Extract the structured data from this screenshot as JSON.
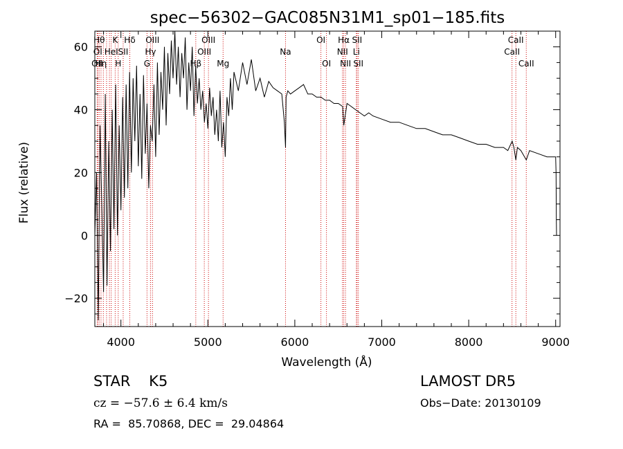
{
  "chart_data": {
    "type": "line",
    "title": "spec−56302−GAC085N31M1_sp01−185.fits",
    "xlabel": "Wavelength (Å)",
    "ylabel": "Flux (relative)",
    "xlim": [
      3700,
      9050
    ],
    "ylim": [
      -29,
      65
    ],
    "x_ticks": [
      4000,
      5000,
      6000,
      7000,
      8000,
      9000
    ],
    "y_ticks": [
      -20,
      0,
      20,
      40,
      60
    ],
    "x_tick_labels": [
      "4000",
      "5000",
      "6000",
      "7000",
      "8000",
      "9000"
    ],
    "y_tick_labels": [
      "−20",
      "0",
      "20",
      "40",
      "60"
    ],
    "grid": false,
    "line_color": "#000000",
    "marker_color": "#cc0000",
    "series": [
      {
        "x": [
          3700,
          3720,
          3740,
          3760,
          3780,
          3800,
          3820,
          3840,
          3860,
          3880,
          3900,
          3920,
          3940,
          3960,
          3980,
          4000,
          4020,
          4040,
          4060,
          4080,
          4100,
          4120,
          4140,
          4160,
          4180,
          4200,
          4220,
          4240,
          4260,
          4280,
          4300,
          4320,
          4340,
          4360,
          4380,
          4400,
          4420,
          4440,
          4460,
          4480,
          4500,
          4520,
          4540,
          4560,
          4580,
          4600,
          4620,
          4640,
          4660,
          4680,
          4700,
          4720,
          4740,
          4760,
          4780,
          4800,
          4820,
          4840,
          4860,
          4880,
          4900,
          4920,
          4940,
          4960,
          4980,
          5000,
          5020,
          5040,
          5060,
          5080,
          5100,
          5120,
          5140,
          5160,
          5180,
          5200,
          5220,
          5240,
          5260,
          5280,
          5300,
          5350,
          5400,
          5450,
          5500,
          5550,
          5600,
          5650,
          5700,
          5750,
          5800,
          5850,
          5880,
          5893,
          5900,
          5920,
          5950,
          6000,
          6050,
          6100,
          6150,
          6200,
          6250,
          6300,
          6350,
          6400,
          6450,
          6500,
          6550,
          6563,
          6600,
          6650,
          6700,
          6750,
          6800,
          6850,
          6900,
          7000,
          7100,
          7200,
          7300,
          7400,
          7500,
          7600,
          7700,
          7800,
          7900,
          8000,
          8100,
          8200,
          8300,
          8400,
          8450,
          8500,
          8520,
          8542,
          8560,
          8600,
          8662,
          8700,
          8800,
          8900,
          9000,
          9005,
          9008,
          9010
        ],
        "y": [
          0,
          20,
          -27,
          35,
          10,
          -18,
          45,
          -16,
          30,
          -5,
          40,
          2,
          48,
          0,
          35,
          8,
          44,
          12,
          48,
          15,
          52,
          20,
          50,
          30,
          54,
          22,
          45,
          18,
          51,
          26,
          42,
          15,
          35,
          30,
          48,
          25,
          55,
          32,
          52,
          40,
          60,
          35,
          58,
          45,
          62,
          50,
          65,
          48,
          60,
          44,
          58,
          50,
          63,
          40,
          55,
          46,
          60,
          38,
          54,
          42,
          50,
          40,
          46,
          36,
          42,
          34,
          47,
          38,
          44,
          32,
          40,
          30,
          46,
          28,
          36,
          25,
          44,
          38,
          50,
          40,
          52,
          46,
          55,
          48,
          56,
          46,
          50,
          44,
          49,
          47,
          46,
          45,
          36,
          28,
          44,
          46,
          45,
          46,
          47,
          48,
          45,
          45,
          44,
          44,
          43,
          43,
          42,
          42,
          41,
          35,
          42,
          41,
          40,
          39,
          38,
          39,
          38,
          37,
          36,
          36,
          35,
          34,
          34,
          33,
          32,
          32,
          31,
          30,
          29,
          29,
          28,
          28,
          27,
          30,
          28,
          24,
          28,
          27,
          24,
          27,
          26,
          25,
          25,
          20,
          5,
          0
        ]
      }
    ],
    "line_markers": [
      {
        "x": 3727,
        "label": "OII",
        "row": 3
      },
      {
        "x": 3734,
        "label": "OI",
        "row": 2
      },
      {
        "x": 3750,
        "label": "Hθ",
        "row": 1
      },
      {
        "x": 3771,
        "label": "Hη",
        "row": 3
      },
      {
        "x": 3798,
        "label": "",
        "row": 0
      },
      {
        "x": 3835,
        "label": "",
        "row": 0
      },
      {
        "x": 3868,
        "label": "",
        "row": 0
      },
      {
        "x": 3889,
        "label": "HeI",
        "row": 2
      },
      {
        "x": 3934,
        "label": "K",
        "row": 1
      },
      {
        "x": 3969,
        "label": "H",
        "row": 3
      },
      {
        "x": 4026,
        "label": "SII",
        "row": 2
      },
      {
        "x": 4102,
        "label": "Hδ",
        "row": 1
      },
      {
        "x": 4300,
        "label": "G",
        "row": 3
      },
      {
        "x": 4340,
        "label": "Hγ",
        "row": 2
      },
      {
        "x": 4363,
        "label": "OIII",
        "row": 1
      },
      {
        "x": 4861,
        "label": "Hβ",
        "row": 3
      },
      {
        "x": 4959,
        "label": "OIII",
        "row": 2
      },
      {
        "x": 5007,
        "label": "OIII",
        "row": 1
      },
      {
        "x": 5175,
        "label": "Mg",
        "row": 3
      },
      {
        "x": 5893,
        "label": "Na",
        "row": 2
      },
      {
        "x": 6300,
        "label": "OI",
        "row": 1
      },
      {
        "x": 6364,
        "label": "OI",
        "row": 3
      },
      {
        "x": 6548,
        "label": "NII",
        "row": 2
      },
      {
        "x": 6563,
        "label": "Hα",
        "row": 1
      },
      {
        "x": 6583,
        "label": "NII",
        "row": 3
      },
      {
        "x": 6708,
        "label": "Li",
        "row": 2
      },
      {
        "x": 6716,
        "label": "SII",
        "row": 1
      },
      {
        "x": 6731,
        "label": "SII",
        "row": 3
      },
      {
        "x": 8498,
        "label": "CaII",
        "row": 2
      },
      {
        "x": 8542,
        "label": "CaII",
        "row": 1
      },
      {
        "x": 8662,
        "label": "CaII",
        "row": 3
      }
    ]
  },
  "info": {
    "class_line": "STAR    K5",
    "survey": "LAMOST DR5",
    "cz_line": "cz = −57.6 ± 6.4 km/s",
    "obs_date": "Obs−Date: 20130109",
    "radec_line": "RA =  85.70868, DEC =  29.04864"
  }
}
